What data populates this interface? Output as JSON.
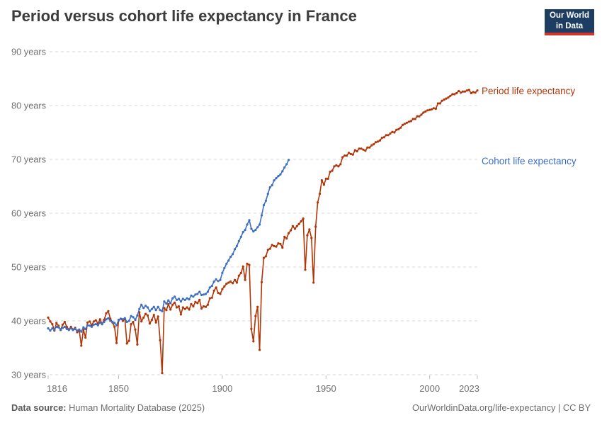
{
  "header": {
    "title": "Period versus cohort life expectancy in France",
    "logo": {
      "line1": "Our World",
      "line2": "in Data",
      "bg": "#1d3d63",
      "accent": "#d0342c"
    }
  },
  "footer": {
    "source_label": "Data source:",
    "source_text": " Human Mortality Database (2025)",
    "attribution": "OurWorldinData.org/life-expectancy | CC BY"
  },
  "chart_data": {
    "type": "line",
    "title": "Period versus cohort life expectancy in France",
    "xlabel": "",
    "ylabel": "",
    "x_axis": {
      "min": 1816,
      "max": 2023,
      "ticks": [
        1816,
        1850,
        1900,
        1950,
        2000,
        2023
      ]
    },
    "y_axis": {
      "min": 30,
      "max": 90,
      "ticks": [
        30,
        40,
        50,
        60,
        70,
        80,
        90
      ],
      "tick_suffix": " years"
    },
    "grid": "horizontal-dashed",
    "legend_position": "right-of-plot",
    "marker": "dot",
    "series": [
      {
        "name": "Period life expectancy",
        "color": "#b13507",
        "start_year": 1816,
        "end_year": 2023,
        "values": [
          40.6,
          39.9,
          39.4,
          38.2,
          39.6,
          39.1,
          38.3,
          39.3,
          39.8,
          38.9,
          38.4,
          38.9,
          38.4,
          38.7,
          37.9,
          38.2,
          35.4,
          38.4,
          36.9,
          39.7,
          39.9,
          39.2,
          39.9,
          40.1,
          39.5,
          40.3,
          39.4,
          40.2,
          41.4,
          41.8,
          40.4,
          39.7,
          38.9,
          35.9,
          40.1,
          40.4,
          40.0,
          40.4,
          35.8,
          36.3,
          39.4,
          39.8,
          38.4,
          35.6,
          41.6,
          39.9,
          40.6,
          41.3,
          41.0,
          39.5,
          40.2,
          41.1,
          39.7,
          40.8,
          36.4,
          30.3,
          42.4,
          42.0,
          43.1,
          42.1,
          43.0,
          43.4,
          42.5,
          42.7,
          41.2,
          42.5,
          42.2,
          42.5,
          42.1,
          43.1,
          42.7,
          43.5,
          43.3,
          43.9,
          42.3,
          42.7,
          42.6,
          43.0,
          44.2,
          44.3,
          45.6,
          46.2,
          45.2,
          45.0,
          45.9,
          46.4,
          46.9,
          47.1,
          47.3,
          47.0,
          47.6,
          47.1,
          48.4,
          48.9,
          50.1,
          47.6,
          50.6,
          50.4,
          38.5,
          36.2,
          40.9,
          42.6,
          34.6,
          47.2,
          51.7,
          52.0,
          53.2,
          53.4,
          54.1,
          53.9,
          53.8,
          54.4,
          54.3,
          53.6,
          55.6,
          55.3,
          56.3,
          56.8,
          57.6,
          57.1,
          57.6,
          58.0,
          58.5,
          59.0,
          49.5,
          55.9,
          57.0,
          55.4,
          47.1,
          57.5,
          62.0,
          63.6,
          66.1,
          65.3,
          66.4,
          66.4,
          67.7,
          67.9,
          68.7,
          68.9,
          68.7,
          69.1,
          70.4,
          70.7,
          70.7,
          71.2,
          71.0,
          70.9,
          71.7,
          71.5,
          72.0,
          72.0,
          71.8,
          71.6,
          72.2,
          72.2,
          72.6,
          72.8,
          73.2,
          73.3,
          73.5,
          74.0,
          74.1,
          74.5,
          74.5,
          74.8,
          75.1,
          75.0,
          75.5,
          75.6,
          75.9,
          76.4,
          76.6,
          76.8,
          77.0,
          77.1,
          77.5,
          77.5,
          78.0,
          78.0,
          78.3,
          78.7,
          78.9,
          79.1,
          79.2,
          79.3,
          79.5,
          79.4,
          80.4,
          80.4,
          80.9,
          81.1,
          81.3,
          81.5,
          81.8,
          82.1,
          82.1,
          82.3,
          82.7,
          82.4,
          82.6,
          82.6,
          82.8,
          82.9,
          82.3,
          82.5,
          82.4,
          82.8
        ]
      },
      {
        "name": "Cohort life expectancy",
        "color": "#3c6dc4",
        "start_year": 1816,
        "end_year": 1932,
        "values": [
          38.6,
          38.2,
          38.6,
          38.4,
          38.9,
          38.8,
          38.4,
          38.7,
          38.9,
          38.5,
          38.3,
          38.6,
          38.3,
          38.5,
          38.2,
          38.4,
          38.0,
          38.8,
          38.5,
          39.2,
          39.1,
          38.9,
          39.3,
          39.4,
          39.2,
          39.7,
          39.4,
          39.8,
          40.3,
          40.5,
          40.0,
          39.8,
          39.6,
          39.2,
          40.2,
          40.4,
          40.3,
          40.5,
          39.8,
          40.0,
          40.9,
          40.7,
          40.2,
          41.0,
          42.2,
          43.0,
          42.4,
          42.8,
          42.5,
          41.8,
          42.2,
          42.6,
          42.0,
          42.6,
          42.0,
          41.8,
          43.6,
          43.2,
          43.8,
          43.3,
          44.2,
          44.5,
          43.9,
          44.1,
          43.6,
          44.1,
          43.9,
          44.2,
          44.0,
          44.7,
          44.5,
          44.9,
          45.0,
          45.4,
          44.8,
          44.9,
          45.0,
          45.4,
          46.2,
          46.5,
          47.3,
          47.7,
          47.4,
          47.6,
          48.9,
          49.8,
          50.6,
          51.2,
          51.9,
          52.4,
          53.3,
          53.9,
          54.8,
          55.6,
          56.5,
          56.9,
          57.9,
          58.7,
          57.1,
          56.6,
          56.9,
          57.4,
          57.9,
          59.6,
          61.5,
          62.3,
          63.6,
          64.8,
          65.2,
          66.1,
          66.5,
          66.9,
          67.2,
          67.8,
          68.5,
          69.1,
          69.9
        ]
      }
    ]
  }
}
